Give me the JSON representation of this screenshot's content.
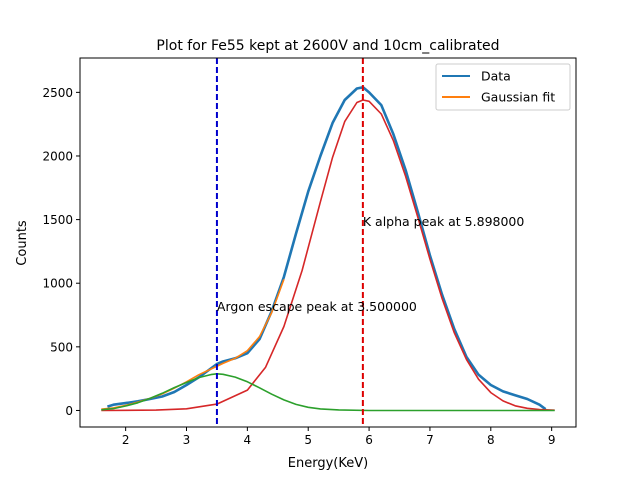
{
  "chart_data": {
    "type": "line",
    "title": "Plot for Fe55 kept at 2600V and 10cm_calibrated",
    "xlabel": "Energy(KeV)",
    "ylabel": "Counts",
    "xlim": [
      1.25,
      9.4
    ],
    "ylim": [
      -130,
      2770
    ],
    "xticks": [
      2,
      3,
      4,
      5,
      6,
      7,
      8,
      9
    ],
    "yticks": [
      0,
      500,
      1000,
      1500,
      2000,
      2500
    ],
    "grid": false,
    "legend_position": "top-right",
    "series": [
      {
        "name": "Data",
        "color": "#1f77b4",
        "points": [
          [
            1.7,
            30
          ],
          [
            1.8,
            45
          ],
          [
            2.0,
            58
          ],
          [
            2.2,
            72
          ],
          [
            2.4,
            90
          ],
          [
            2.6,
            110
          ],
          [
            2.8,
            145
          ],
          [
            3.0,
            200
          ],
          [
            3.2,
            260
          ],
          [
            3.4,
            330
          ],
          [
            3.5,
            365
          ],
          [
            3.6,
            385
          ],
          [
            3.8,
            410
          ],
          [
            4.0,
            450
          ],
          [
            4.2,
            560
          ],
          [
            4.4,
            780
          ],
          [
            4.6,
            1050
          ],
          [
            4.8,
            1390
          ],
          [
            5.0,
            1720
          ],
          [
            5.2,
            2000
          ],
          [
            5.4,
            2260
          ],
          [
            5.6,
            2440
          ],
          [
            5.8,
            2530
          ],
          [
            5.9,
            2540
          ],
          [
            6.0,
            2500
          ],
          [
            6.2,
            2400
          ],
          [
            6.4,
            2170
          ],
          [
            6.6,
            1890
          ],
          [
            6.8,
            1560
          ],
          [
            7.0,
            1220
          ],
          [
            7.2,
            910
          ],
          [
            7.4,
            640
          ],
          [
            7.6,
            420
          ],
          [
            7.8,
            280
          ],
          [
            8.0,
            200
          ],
          [
            8.2,
            150
          ],
          [
            8.4,
            120
          ],
          [
            8.6,
            90
          ],
          [
            8.8,
            45
          ],
          [
            8.9,
            10
          ]
        ]
      },
      {
        "name": "Gaussian fit",
        "color": "#ff7f0e",
        "points": [
          [
            1.6,
            10
          ],
          [
            1.8,
            20
          ],
          [
            2.0,
            40
          ],
          [
            2.2,
            65
          ],
          [
            2.4,
            95
          ],
          [
            2.6,
            130
          ],
          [
            2.8,
            175
          ],
          [
            3.0,
            225
          ],
          [
            3.2,
            280
          ],
          [
            3.4,
            325
          ],
          [
            3.6,
            370
          ],
          [
            3.8,
            410
          ],
          [
            4.0,
            470
          ],
          [
            4.2,
            580
          ],
          [
            4.4,
            770
          ],
          [
            4.6,
            1030
          ]
        ]
      },
      {
        "name": "",
        "color": "#d62728",
        "points": [
          [
            1.6,
            0
          ],
          [
            2.5,
            3
          ],
          [
            3.0,
            13
          ],
          [
            3.5,
            50
          ],
          [
            4.0,
            160
          ],
          [
            4.3,
            340
          ],
          [
            4.6,
            660
          ],
          [
            4.9,
            1100
          ],
          [
            5.2,
            1640
          ],
          [
            5.4,
            1990
          ],
          [
            5.6,
            2270
          ],
          [
            5.8,
            2420
          ],
          [
            5.9,
            2440
          ],
          [
            6.0,
            2430
          ],
          [
            6.2,
            2330
          ],
          [
            6.4,
            2120
          ],
          [
            6.6,
            1840
          ],
          [
            6.8,
            1520
          ],
          [
            7.0,
            1190
          ],
          [
            7.2,
            880
          ],
          [
            7.4,
            610
          ],
          [
            7.6,
            400
          ],
          [
            7.8,
            245
          ],
          [
            8.0,
            140
          ],
          [
            8.2,
            75
          ],
          [
            8.4,
            37
          ],
          [
            8.6,
            17
          ],
          [
            8.8,
            7
          ],
          [
            9.05,
            2
          ]
        ]
      },
      {
        "name": "",
        "color": "#2ca02c",
        "points": [
          [
            1.6,
            5
          ],
          [
            1.8,
            15
          ],
          [
            2.0,
            35
          ],
          [
            2.2,
            60
          ],
          [
            2.4,
            95
          ],
          [
            2.6,
            135
          ],
          [
            2.8,
            180
          ],
          [
            3.0,
            220
          ],
          [
            3.2,
            258
          ],
          [
            3.4,
            282
          ],
          [
            3.5,
            288
          ],
          [
            3.6,
            284
          ],
          [
            3.8,
            262
          ],
          [
            4.0,
            225
          ],
          [
            4.2,
            178
          ],
          [
            4.4,
            128
          ],
          [
            4.6,
            83
          ],
          [
            4.8,
            48
          ],
          [
            5.0,
            25
          ],
          [
            5.2,
            12
          ],
          [
            5.5,
            4
          ],
          [
            6.0,
            0
          ],
          [
            9.05,
            0
          ]
        ]
      }
    ],
    "vlines": [
      {
        "x": 3.5,
        "color": "#0000cc",
        "style": "dashed"
      },
      {
        "x": 5.898,
        "color": "#dd0000",
        "style": "dashed"
      }
    ],
    "annotations": [
      {
        "text": "K alpha peak at 5.898000",
        "x": 5.898,
        "y": 1450
      },
      {
        "text": "Argon escape peak at 3.500000",
        "x": 3.5,
        "y": 780
      }
    ]
  }
}
